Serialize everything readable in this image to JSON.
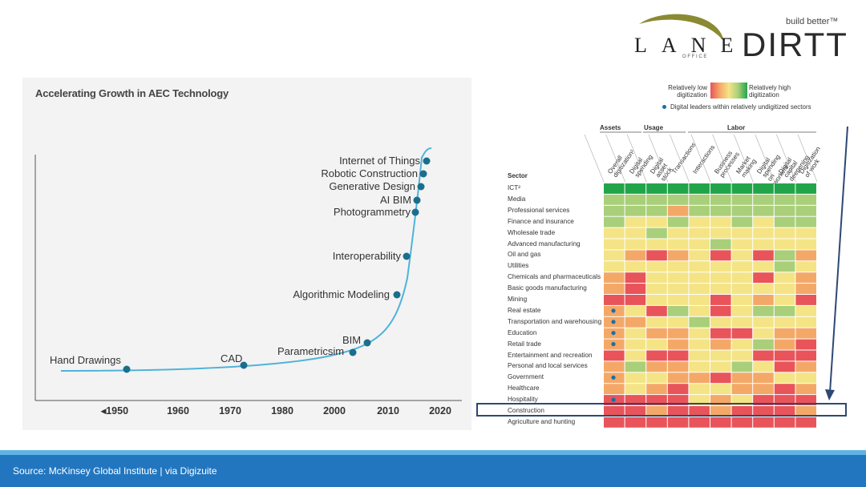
{
  "logo": {
    "lane_letters": [
      "L",
      "A",
      "N",
      "E"
    ],
    "office": "O F F I C E",
    "dirtt": "DIRTT",
    "tagline": "build better™"
  },
  "left_chart": {
    "title": "Accelerating Growth in AEC Technology",
    "x_tick_labels": [
      "◂1950",
      "1960",
      "1970",
      "1980",
      "2000",
      "2010",
      "2020"
    ],
    "milestones": [
      "Hand Drawings",
      "CAD",
      "Parametricsim",
      "BIM",
      "Algorithmic Modeling",
      "Interoperability",
      "Photogrammetry",
      "AI BIM",
      "Generative Design",
      "Robotic Construction",
      "Internet of Things"
    ],
    "colors": {
      "curve": "#4fb3d9",
      "point": "#1a6e8e",
      "axis": "#555555"
    }
  },
  "heatmap": {
    "legend": {
      "low": "Relatively low digitization",
      "high": "Relatively high digitization",
      "leaders": "Digital leaders within relatively undigitized sectors"
    },
    "groups": [
      "Assets",
      "Usage",
      "Labor"
    ],
    "sector_header": "Sector",
    "columns": [
      "Overall digitization¹",
      "Digital spending",
      "Digital asset stock",
      "Transactions",
      "Interactions",
      "Business processes",
      "Market making",
      "Digital spending on workers",
      "Digital capital deepening",
      "Digitization of work"
    ],
    "sectors": [
      "ICT²",
      "Media",
      "Professional services",
      "Finance and insurance",
      "Wholesale trade",
      "Advanced manufacturing",
      "Oil and gas",
      "Utilities",
      "Chemicals and pharmaceuticals",
      "Basic goods manufacturing",
      "Mining",
      "Real estate",
      "Transportation and warehousing",
      "Education",
      "Retail trade",
      "Entertainment and recreation",
      "Personal and local services",
      "Government",
      "Healthcare",
      "Hospitality",
      "Construction",
      "Agriculture and hunting"
    ],
    "levels": [
      [
        5,
        5,
        5,
        5,
        5,
        5,
        5,
        5,
        5,
        5
      ],
      [
        4,
        4,
        4,
        4,
        4,
        4,
        4,
        4,
        4,
        4
      ],
      [
        4,
        4,
        4,
        2,
        4,
        4,
        4,
        4,
        4,
        4
      ],
      [
        4,
        3,
        3,
        4,
        3,
        3,
        4,
        3,
        4,
        4
      ],
      [
        3,
        3,
        4,
        3,
        3,
        3,
        3,
        3,
        3,
        3
      ],
      [
        3,
        3,
        3,
        3,
        3,
        4,
        3,
        3,
        3,
        3
      ],
      [
        3,
        2,
        1,
        2,
        3,
        1,
        3,
        1,
        4,
        2
      ],
      [
        3,
        3,
        3,
        3,
        3,
        3,
        3,
        3,
        4,
        3
      ],
      [
        2,
        1,
        3,
        3,
        3,
        3,
        3,
        1,
        3,
        2
      ],
      [
        2,
        1,
        3,
        3,
        3,
        3,
        3,
        3,
        3,
        2
      ],
      [
        1,
        1,
        3,
        3,
        3,
        1,
        3,
        2,
        3,
        1
      ],
      [
        2,
        3,
        1,
        4,
        3,
        1,
        3,
        4,
        4,
        3
      ],
      [
        2,
        2,
        3,
        3,
        4,
        3,
        3,
        3,
        3,
        3
      ],
      [
        2,
        3,
        2,
        2,
        3,
        1,
        1,
        3,
        2,
        2
      ],
      [
        2,
        3,
        3,
        2,
        3,
        2,
        3,
        4,
        2,
        1
      ],
      [
        1,
        3,
        1,
        1,
        3,
        3,
        3,
        1,
        1,
        1
      ],
      [
        2,
        4,
        2,
        2,
        3,
        3,
        4,
        3,
        1,
        2
      ],
      [
        2,
        3,
        3,
        2,
        2,
        1,
        2,
        2,
        3,
        3
      ],
      [
        2,
        3,
        2,
        1,
        3,
        3,
        2,
        2,
        1,
        2
      ],
      [
        1,
        1,
        1,
        1,
        3,
        2,
        3,
        1,
        1,
        1
      ],
      [
        1,
        1,
        2,
        1,
        1,
        2,
        1,
        1,
        1,
        2
      ],
      [
        1,
        1,
        1,
        1,
        1,
        1,
        1,
        1,
        1,
        1
      ]
    ],
    "leader_rows": [
      11,
      12,
      13,
      14,
      17,
      19
    ],
    "highlighted_row": "Construction",
    "colors": {
      "1": "#e8545a",
      "2": "#f4a868",
      "3": "#f4e486",
      "4": "#a9cf7a",
      "5": "#22a54a"
    }
  },
  "footer": {
    "source": "Source: McKinsey Global Institute | via Digizuite"
  }
}
